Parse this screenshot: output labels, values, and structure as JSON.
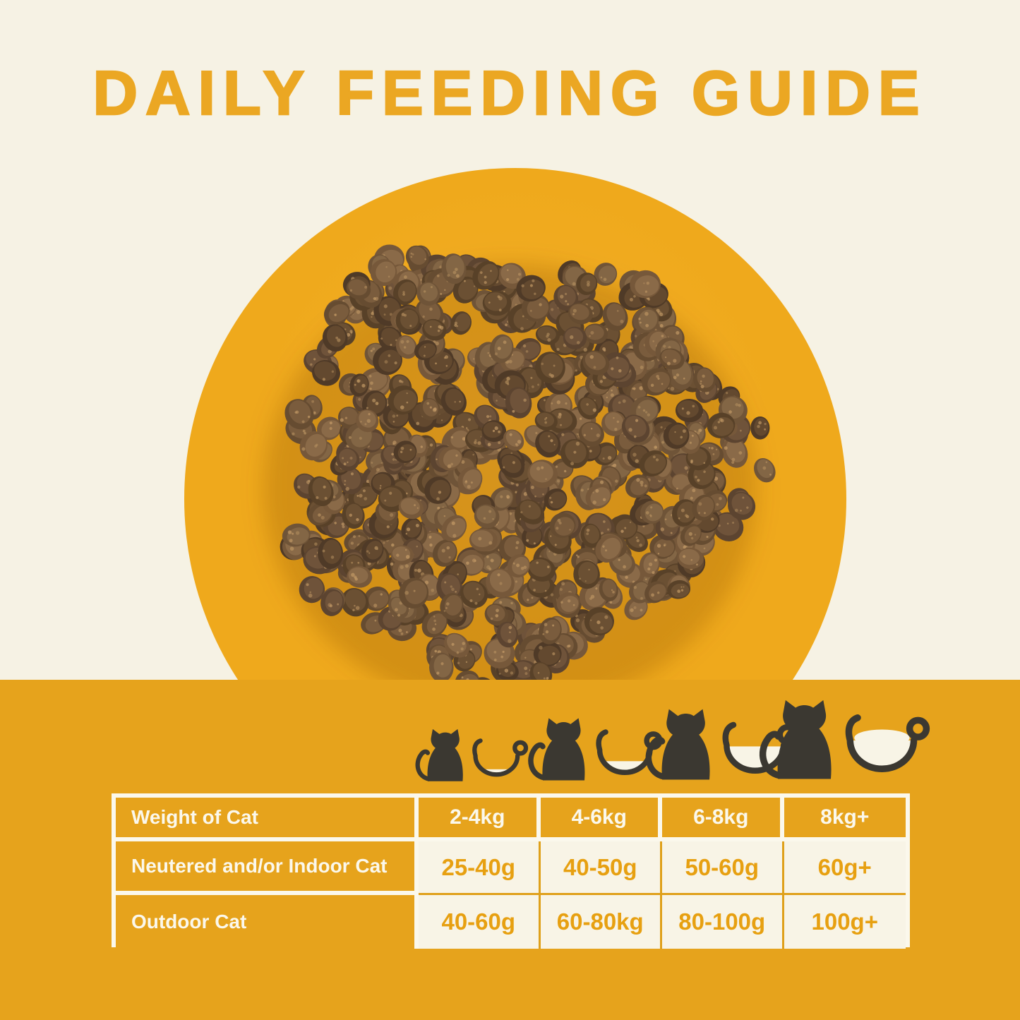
{
  "title": "DAILY FEEDING GUIDE",
  "theme": {
    "background": "#f6f2e4",
    "band_yellow": "#e6a31c",
    "plate_yellow": "#efa91c",
    "plate_yellow_light": "#f4b02a",
    "plate_yellow_dark": "#e1970e",
    "title_orange": "#eba723",
    "value_orange": "#e7a011",
    "divider_orange": "#dfa01a",
    "cell_cream": "#f8f4e6",
    "border_white": "#fbf8ec",
    "text_white": "#fbf8ec",
    "icon_dark": "#3b3831",
    "kibble_shadow": "rgba(146,86,2,0.30)",
    "kibble_speckle": "#c29a66",
    "kibble_palette": [
      "#4f3a27",
      "#5c4430",
      "#664c31",
      "#6f5438",
      "#584128",
      "#76583a"
    ],
    "kibble_palette_light": [
      "#63492f",
      "#6f533a",
      "#7a5c3d",
      "#836645",
      "#6b5033",
      "#8a6a48"
    ]
  },
  "size_icons": [
    {
      "name": "smallest-cat-with-bowl",
      "bowl_fill": 0.28
    },
    {
      "name": "small-cat-with-bowl",
      "bowl_fill": 0.5
    },
    {
      "name": "medium-cat-with-bowl",
      "bowl_fill": 0.95
    },
    {
      "name": "large-cat-with-bowl",
      "bowl_fill": 1.05
    }
  ],
  "table": {
    "header": {
      "label": "Weight of Cat",
      "values": [
        "2-4kg",
        "4-6kg",
        "6-8kg",
        "8kg+"
      ]
    },
    "rows": [
      {
        "label": "Neutered and/or Indoor Cat",
        "values": [
          "25-40g",
          "40-50g",
          "50-60g",
          "60g+"
        ]
      },
      {
        "label": "Outdoor Cat",
        "values": [
          "40-60g",
          "60-80kg",
          "80-100g",
          "100g+"
        ]
      }
    ]
  },
  "chart_data": {
    "type": "table",
    "title": "DAILY FEEDING GUIDE",
    "columns": [
      "Weight of Cat",
      "2-4kg",
      "4-6kg",
      "6-8kg",
      "8kg+"
    ],
    "rows": [
      [
        "Neutered and/or Indoor Cat",
        "25-40g",
        "40-50g",
        "50-60g",
        "60g+"
      ],
      [
        "Outdoor Cat",
        "40-60g",
        "60-80kg",
        "80-100g",
        "100g+"
      ]
    ],
    "notes": "Cat-size icons above each weight column show a bowl with increasing food fill level"
  }
}
